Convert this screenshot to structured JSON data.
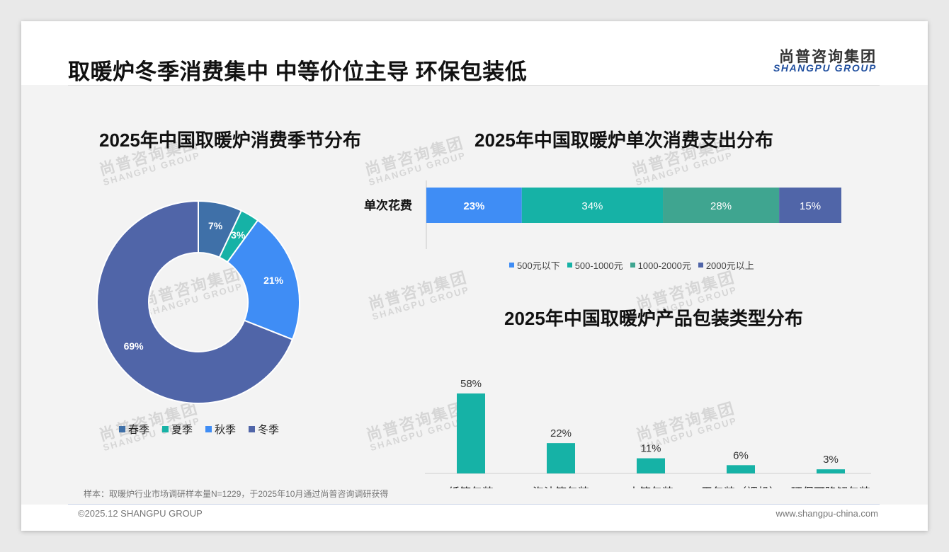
{
  "header": {
    "title": "取暖炉冬季消费集中 中等价位主导 环保包装低",
    "logo_cn": "尚普咨询集团",
    "logo_en": "SHANGPU GROUP"
  },
  "watermark": {
    "cn": "尚普咨询集团",
    "en": "SHANGPU GROUP"
  },
  "colors": {
    "winter": "#5065a8",
    "spring": "#3f70a8",
    "summer": "#16b2a6",
    "autumn": "#3f8df5",
    "spend_low": "#3f8df5",
    "spend_mid": "#16b2a6",
    "spend_high": "#3fa590",
    "spend_top": "#5065a8",
    "bar": "#16b2a6"
  },
  "chart_data": [
    {
      "type": "pie",
      "title": "2025年中国取暖炉消费季节分布",
      "categories": [
        "春季",
        "夏季",
        "秋季",
        "冬季"
      ],
      "values": [
        7,
        3,
        21,
        69
      ],
      "labels": [
        "7%",
        "3%",
        "21%",
        "69%"
      ],
      "donut": true,
      "legend": "bottom"
    },
    {
      "type": "bar",
      "orientation": "horizontal-stacked",
      "title": "2025年中国取暖炉单次消费支出分布",
      "categories": [
        "单次花费"
      ],
      "series": [
        {
          "name": "500元以下",
          "values": [
            23
          ],
          "label": "23%"
        },
        {
          "name": "500-1000元",
          "values": [
            34
          ],
          "label": "34%"
        },
        {
          "name": "1000-2000元",
          "values": [
            28
          ],
          "label": "28%"
        },
        {
          "name": "2000元以上",
          "values": [
            15
          ],
          "label": "15%"
        }
      ],
      "legend": "bottom"
    },
    {
      "type": "bar",
      "title": "2025年中国取暖炉产品包装类型分布",
      "categories": [
        "纸箱包装",
        "泡沫箱包装",
        "木箱包装",
        "无包装（裸机）",
        "环保可降解包装"
      ],
      "values": [
        58,
        22,
        11,
        6,
        3
      ],
      "labels": [
        "58%",
        "22%",
        "11%",
        "6%",
        "3%"
      ]
    }
  ],
  "note": "样本：取暖炉行业市场调研样本量N=1229，于2025年10月通过尚普咨询调研获得",
  "footer": {
    "left": "©2025.12 SHANGPU GROUP",
    "right": "www.shangpu-china.com"
  }
}
